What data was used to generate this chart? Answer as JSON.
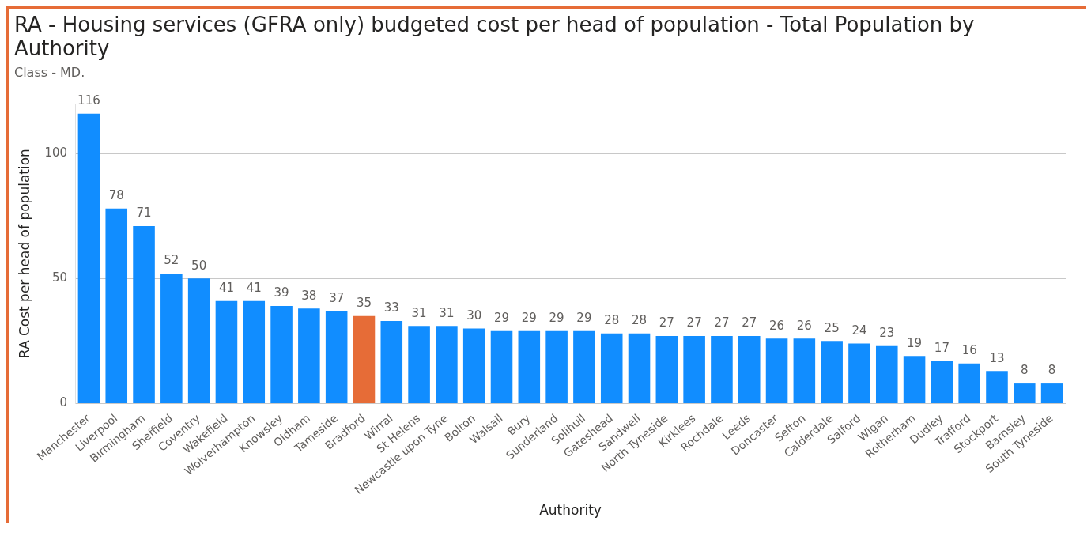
{
  "chart_data": {
    "type": "bar",
    "title": "RA - Housing services (GFRA only) budgeted cost per head of population - Total Population by Authority",
    "subtitle": "Class - MD.",
    "xlabel": "Authority",
    "ylabel": "RA Cost per head of population",
    "categories": [
      "Manchester",
      "Liverpool",
      "Birmingham",
      "Sheffield",
      "Coventry",
      "Wakefield",
      "Wolverhampton",
      "Knowsley",
      "Oldham",
      "Tameside",
      "Bradford",
      "Wirral",
      "St Helens",
      "Newcastle upon Tyne",
      "Bolton",
      "Walsall",
      "Bury",
      "Sunderland",
      "Solihull",
      "Gateshead",
      "Sandwell",
      "North Tyneside",
      "Kirklees",
      "Rochdale",
      "Leeds",
      "Doncaster",
      "Sefton",
      "Calderdale",
      "Salford",
      "Wigan",
      "Rotherham",
      "Dudley",
      "Trafford",
      "Stockport",
      "Barnsley",
      "South Tyneside"
    ],
    "values": [
      116,
      78,
      71,
      52,
      50,
      41,
      41,
      39,
      38,
      37,
      35,
      33,
      31,
      31,
      30,
      29,
      29,
      29,
      29,
      28,
      28,
      27,
      27,
      27,
      27,
      26,
      26,
      25,
      24,
      23,
      19,
      17,
      16,
      13,
      8,
      8
    ],
    "colors": [
      "#118dff",
      "#118dff",
      "#118dff",
      "#118dff",
      "#118dff",
      "#118dff",
      "#118dff",
      "#118dff",
      "#118dff",
      "#118dff",
      "#e66c37",
      "#118dff",
      "#118dff",
      "#118dff",
      "#118dff",
      "#118dff",
      "#118dff",
      "#118dff",
      "#118dff",
      "#118dff",
      "#118dff",
      "#118dff",
      "#118dff",
      "#118dff",
      "#118dff",
      "#118dff",
      "#118dff",
      "#118dff",
      "#118dff",
      "#118dff",
      "#118dff",
      "#118dff",
      "#118dff",
      "#118dff",
      "#118dff",
      "#118dff"
    ],
    "ylim": [
      0,
      120
    ],
    "yticks": [
      0,
      50,
      100
    ],
    "grid": "y",
    "data_labels": true,
    "legend": false
  }
}
